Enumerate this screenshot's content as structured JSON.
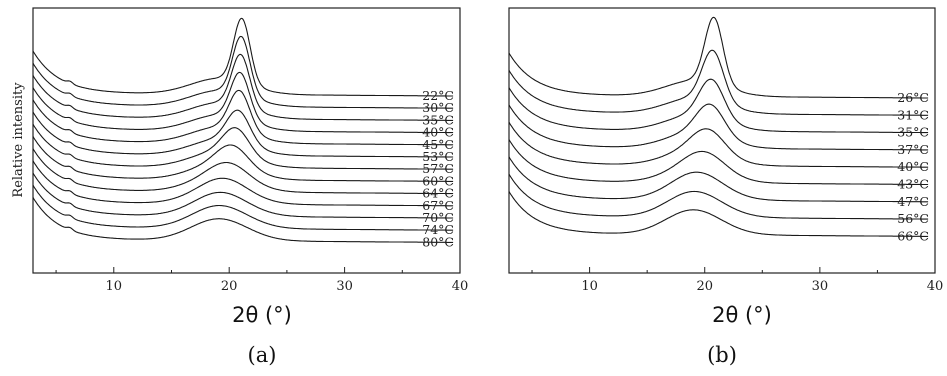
{
  "chart_data": [
    {
      "type": "line",
      "panel_label": "(a)",
      "xlabel": "2θ (°)",
      "ylabel": "Relative intensity",
      "xlim": [
        3,
        40
      ],
      "xticks": [
        "10",
        "20",
        "30",
        "40"
      ],
      "series": [
        {
          "name": "22°C",
          "peak_x": 21.1,
          "peak_h": 78,
          "width": 1.0
        },
        {
          "name": "30°C",
          "peak_x": 21.05,
          "peak_h": 72,
          "width": 1.05
        },
        {
          "name": "35°C",
          "peak_x": 21.0,
          "peak_h": 66,
          "width": 1.1
        },
        {
          "name": "40°C",
          "peak_x": 20.95,
          "peak_h": 60,
          "width": 1.15
        },
        {
          "name": "45°C",
          "peak_x": 20.9,
          "peak_h": 54,
          "width": 1.25
        },
        {
          "name": "53°C",
          "peak_x": 20.8,
          "peak_h": 46,
          "width": 1.4
        },
        {
          "name": "57°C",
          "peak_x": 20.6,
          "peak_h": 40,
          "width": 1.6
        },
        {
          "name": "60°C",
          "peak_x": 20.3,
          "peak_h": 34,
          "width": 1.9
        },
        {
          "name": "64°C",
          "peak_x": 20.0,
          "peak_h": 28,
          "width": 2.3
        },
        {
          "name": "67°C",
          "peak_x": 19.6,
          "peak_h": 24,
          "width": 2.6
        },
        {
          "name": "70°C",
          "peak_x": 19.3,
          "peak_h": 22,
          "width": 2.8
        },
        {
          "name": "74°C",
          "peak_x": 19.1,
          "peak_h": 21,
          "width": 3.0
        },
        {
          "name": "80°C",
          "peak_x": 19.0,
          "peak_h": 20,
          "width": 3.1
        }
      ]
    },
    {
      "type": "line",
      "panel_label": "(b)",
      "xlabel": "2θ (°)",
      "ylabel": "",
      "xlim": [
        3,
        40
      ],
      "xticks": [
        "10",
        "20",
        "30",
        "40"
      ],
      "series": [
        {
          "name": "26°C",
          "peak_x": 20.8,
          "peak_h": 80,
          "width": 1.1
        },
        {
          "name": "31°C",
          "peak_x": 20.7,
          "peak_h": 64,
          "width": 1.3
        },
        {
          "name": "35°C",
          "peak_x": 20.6,
          "peak_h": 52,
          "width": 1.5
        },
        {
          "name": "37°C",
          "peak_x": 20.5,
          "peak_h": 44,
          "width": 1.7
        },
        {
          "name": "40°C",
          "peak_x": 20.3,
          "peak_h": 36,
          "width": 2.0
        },
        {
          "name": "43°C",
          "peak_x": 20.0,
          "peak_h": 30,
          "width": 2.4
        },
        {
          "name": "47°C",
          "peak_x": 19.4,
          "peak_h": 26,
          "width": 2.8
        },
        {
          "name": "56°C",
          "peak_x": 19.0,
          "peak_h": 24,
          "width": 3.0
        },
        {
          "name": "66°C",
          "peak_x": 18.8,
          "peak_h": 23,
          "width": 3.1
        }
      ]
    }
  ]
}
